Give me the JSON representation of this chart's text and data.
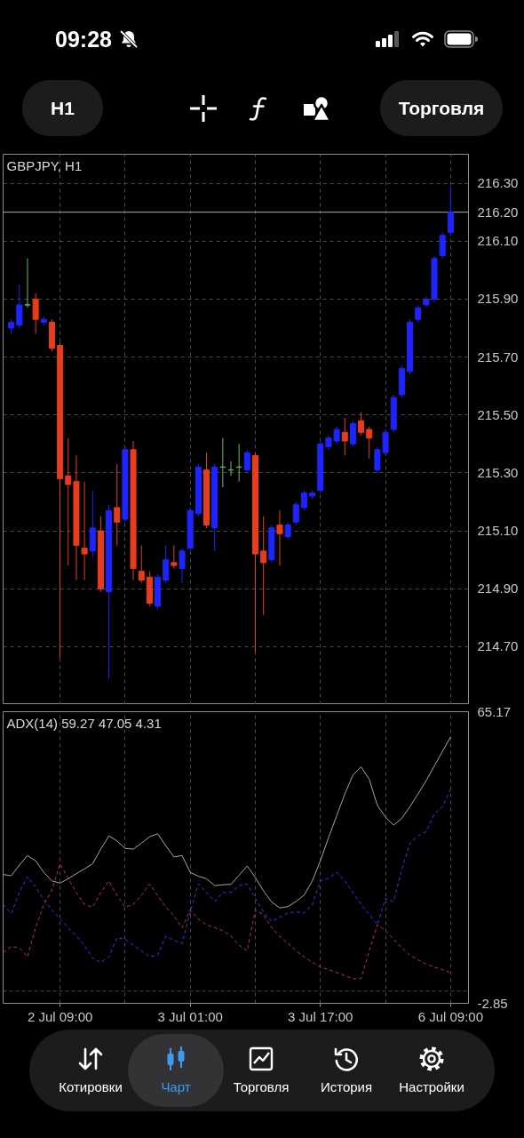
{
  "chart_data": [
    {
      "type": "other",
      "annotations": [
        "09:28",
        "H1",
        "Торговля"
      ]
    },
    {
      "type": "candlestick",
      "title": "GBPJPY, H1",
      "categories": [
        null,
        null,
        null,
        null,
        null,
        null,
        null,
        null,
        null,
        null,
        null,
        null,
        null,
        null,
        null,
        null,
        null,
        null,
        null,
        null,
        null,
        null,
        null,
        null,
        null,
        null,
        null,
        null,
        null,
        null,
        null,
        null,
        null,
        null,
        null,
        null,
        null,
        null,
        null,
        null,
        null,
        null,
        null,
        null,
        null,
        null,
        null,
        null,
        null,
        null,
        null,
        null,
        null,
        null,
        null,
        null
      ],
      "ohlc": [
        null,
        [
          215.8,
          215.83,
          215.78,
          215.82
        ],
        [
          215.81,
          215.95,
          215.8,
          215.88
        ],
        [
          215.88,
          216.04,
          215.87,
          215.88
        ],
        [
          215.9,
          215.92,
          215.78,
          215.83
        ],
        [
          215.82,
          215.84,
          215.81,
          215.83
        ],
        [
          215.82,
          215.83,
          215.72,
          215.73
        ],
        [
          215.74,
          215.75,
          214.66,
          215.28
        ],
        [
          215.29,
          215.42,
          214.98,
          215.26
        ],
        [
          215.27,
          215.36,
          214.93,
          215.05
        ],
        [
          215.04,
          215.27,
          214.93,
          215.02
        ],
        [
          215.03,
          215.24,
          215.01,
          215.11
        ],
        [
          215.1,
          215.15,
          214.89,
          214.9
        ],
        [
          214.89,
          215.19,
          214.59,
          215.17
        ],
        [
          215.18,
          215.33,
          215.05,
          215.13
        ],
        [
          215.14,
          215.39,
          215.13,
          215.38
        ],
        [
          215.38,
          215.41,
          214.93,
          214.97
        ],
        [
          214.96,
          215.05,
          214.92,
          214.93
        ],
        [
          214.94,
          214.96,
          214.84,
          214.85
        ],
        [
          214.84,
          214.95,
          214.83,
          214.94
        ],
        [
          214.93,
          215.05,
          214.92,
          215.0
        ],
        [
          214.99,
          215.05,
          214.97,
          214.98
        ],
        [
          214.97,
          215.04,
          214.92,
          215.03
        ],
        [
          215.04,
          215.18,
          215.03,
          215.17
        ],
        [
          215.16,
          215.33,
          215.15,
          215.32
        ],
        [
          215.31,
          215.37,
          215.11,
          215.12
        ],
        [
          215.11,
          215.33,
          215.03,
          215.32
        ],
        [
          215.32,
          215.42,
          215.25,
          215.32
        ],
        [
          215.31,
          215.34,
          215.29,
          215.31
        ],
        [
          215.32,
          215.4,
          215.27,
          215.32
        ],
        [
          215.31,
          215.38,
          215.3,
          215.37
        ],
        [
          215.36,
          215.37,
          214.68,
          215.02
        ],
        [
          215.03,
          215.15,
          214.81,
          214.99
        ],
        [
          215.0,
          215.12,
          214.99,
          215.11
        ],
        [
          215.12,
          215.17,
          214.98,
          215.09
        ],
        [
          215.08,
          215.13,
          215.07,
          215.12
        ],
        [
          215.13,
          215.2,
          215.12,
          215.19
        ],
        [
          215.18,
          215.24,
          215.17,
          215.23
        ],
        [
          215.22,
          215.24,
          215.21,
          215.23
        ],
        [
          215.24,
          215.41,
          215.23,
          215.4
        ],
        [
          215.39,
          215.43,
          215.38,
          215.42
        ],
        [
          215.41,
          215.46,
          215.4,
          215.45
        ],
        [
          215.44,
          215.49,
          215.36,
          215.41
        ],
        [
          215.4,
          215.48,
          215.39,
          215.47
        ],
        [
          215.48,
          215.51,
          215.43,
          215.44
        ],
        [
          215.45,
          215.46,
          215.35,
          215.42
        ],
        [
          215.31,
          215.39,
          215.3,
          215.38
        ],
        [
          215.37,
          215.45,
          215.36,
          215.44
        ],
        [
          215.45,
          215.57,
          215.44,
          215.56
        ],
        [
          215.57,
          215.67,
          215.56,
          215.66
        ],
        [
          215.65,
          215.83,
          215.64,
          215.82
        ],
        [
          215.83,
          215.88,
          215.82,
          215.87
        ],
        [
          215.88,
          215.91,
          215.87,
          215.9
        ],
        [
          215.9,
          216.05,
          215.89,
          216.04
        ],
        [
          216.05,
          216.13,
          216.04,
          216.12
        ],
        [
          216.13,
          216.29,
          216.12,
          216.2
        ]
      ],
      "colors": [
        null,
        "#1f24ff",
        "#1f24ff",
        "#6ab86a",
        "#e73c1e",
        "#1f24ff",
        "#e73c1e",
        "#e73c1e",
        "#e73c1e",
        "#e73c1e",
        "#e73c1e",
        "#1f24ff",
        "#e73c1e",
        "#1f24ff",
        "#e73c1e",
        "#1f24ff",
        "#e73c1e",
        "#e73c1e",
        "#e73c1e",
        "#1f24ff",
        "#1f24ff",
        "#e73c1e",
        "#1f24ff",
        "#1f24ff",
        "#1f24ff",
        "#e73c1e",
        "#1f24ff",
        "#6ab86a",
        "#6ab86a",
        "#6ab86a",
        "#1f24ff",
        "#e73c1e",
        "#e73c1e",
        "#1f24ff",
        "#e73c1e",
        "#1f24ff",
        "#1f24ff",
        "#1f24ff",
        "#1f24ff",
        "#1f24ff",
        "#1f24ff",
        "#1f24ff",
        "#e73c1e",
        "#1f24ff",
        "#e73c1e",
        "#e73c1e",
        "#1f24ff",
        "#1f24ff",
        "#1f24ff",
        "#1f24ff",
        "#1f24ff",
        "#1f24ff",
        "#1f24ff",
        "#1f24ff",
        "#1f24ff",
        "#1f24ff"
      ],
      "ylim": [
        214.5,
        216.4
      ],
      "yticks": [
        {
          "value": 214.7,
          "label": "214.70"
        },
        {
          "value": 214.9,
          "label": "214.90"
        },
        {
          "value": 215.1,
          "label": "215.10"
        },
        {
          "value": 215.3,
          "label": "215.30"
        },
        {
          "value": 215.5,
          "label": "215.50"
        },
        {
          "value": 215.7,
          "label": "215.70"
        },
        {
          "value": 215.9,
          "label": "215.90"
        },
        {
          "value": 216.1,
          "label": "216.10"
        },
        {
          "value": 216.3,
          "label": "216.30"
        }
      ],
      "grid": true,
      "tick_labels": "y",
      "ref_lines": [
        {
          "axis": "y",
          "value": 216.2,
          "label": "216.20",
          "color": "#a3adb8",
          "line_style": "solid"
        }
      ]
    },
    {
      "type": "line",
      "title": "ADX(14) 59.27 47.05 4.31",
      "categories": [
        null,
        null,
        null,
        null,
        null,
        null,
        null,
        "2 Jul 09:00",
        null,
        null,
        null,
        null,
        null,
        null,
        null,
        null,
        null,
        null,
        null,
        null,
        null,
        null,
        null,
        "3 Jul 01:00",
        null,
        null,
        null,
        null,
        null,
        null,
        null,
        null,
        null,
        null,
        null,
        null,
        null,
        null,
        null,
        "3 Jul 17:00",
        null,
        null,
        null,
        null,
        null,
        null,
        null,
        null,
        null,
        null,
        null,
        null,
        null,
        null,
        null,
        "6 Jul 09:00"
      ],
      "series": [
        {
          "color": "#a5a5a5",
          "line_style": "solid",
          "values": [
            27.2,
            26.9,
            29.4,
            31.6,
            30.4,
            27.7,
            25.7,
            25.2,
            26.2,
            27.4,
            28.5,
            29.7,
            33.1,
            36.2,
            35.0,
            33.3,
            33.1,
            34.5,
            36.0,
            36.7,
            33.9,
            31.3,
            31.6,
            27.7,
            26.8,
            26.2,
            24.6,
            24.8,
            24.9,
            27.0,
            29.2,
            26.5,
            23.4,
            20.8,
            19.4,
            19.7,
            20.9,
            22.4,
            25.7,
            30.4,
            35.8,
            40.9,
            46.0,
            50.4,
            52.3,
            49.4,
            43.3,
            40.6,
            38.7,
            40.3,
            43.0,
            46.0,
            49.1,
            52.5,
            55.9,
            59.27
          ]
        },
        {
          "color": "#3535e6",
          "line_style": "dashed",
          "values": [
            20.2,
            18.1,
            23.0,
            26.7,
            24.3,
            21.3,
            18.9,
            16.8,
            14.8,
            12.8,
            10.7,
            7.7,
            6.7,
            8.0,
            12.4,
            12.1,
            10.7,
            9.4,
            8.0,
            8.4,
            12.8,
            11.8,
            11.1,
            18.5,
            25.0,
            23.0,
            20.9,
            23.0,
            23.0,
            24.6,
            25.0,
            21.6,
            18.5,
            16.2,
            17.2,
            18.2,
            18.5,
            18.2,
            20.2,
            25.7,
            26.3,
            27.7,
            25.7,
            23.0,
            20.2,
            17.9,
            15.5,
            21.6,
            20.9,
            28.4,
            34.5,
            36.2,
            37.2,
            41.3,
            43.0,
            47.05
          ]
        },
        {
          "color": "#b83232",
          "line_style": "dashed",
          "values": [
            9.0,
            10.4,
            10.1,
            8.0,
            14.8,
            20.2,
            23.6,
            29.7,
            26.3,
            23.0,
            20.2,
            19.6,
            23.0,
            25.7,
            22.3,
            19.6,
            20.2,
            22.3,
            25.0,
            22.3,
            19.6,
            17.5,
            14.8,
            18.9,
            16.8,
            15.5,
            14.8,
            14.1,
            12.8,
            10.7,
            9.4,
            18.9,
            17.9,
            14.8,
            12.8,
            11.1,
            9.4,
            8.0,
            6.7,
            5.6,
            5.0,
            4.3,
            3.6,
            2.9,
            2.9,
            9.4,
            15.5,
            14.1,
            12.1,
            10.1,
            8.4,
            7.3,
            6.3,
            5.6,
            5.0,
            4.31
          ]
        }
      ],
      "ylim": [
        -2.85,
        65.17
      ],
      "yticks": [
        65.17,
        -2.85
      ],
      "grid": "x",
      "ref_lines": [
        {
          "axis": "y",
          "value": 0,
          "color": "#4a4a4a",
          "line_style": "dashed"
        }
      ]
    },
    {
      "type": "other",
      "categories": [
        "Котировки",
        "Чарт",
        "Торговля",
        "История",
        "Настройки"
      ]
    }
  ]
}
